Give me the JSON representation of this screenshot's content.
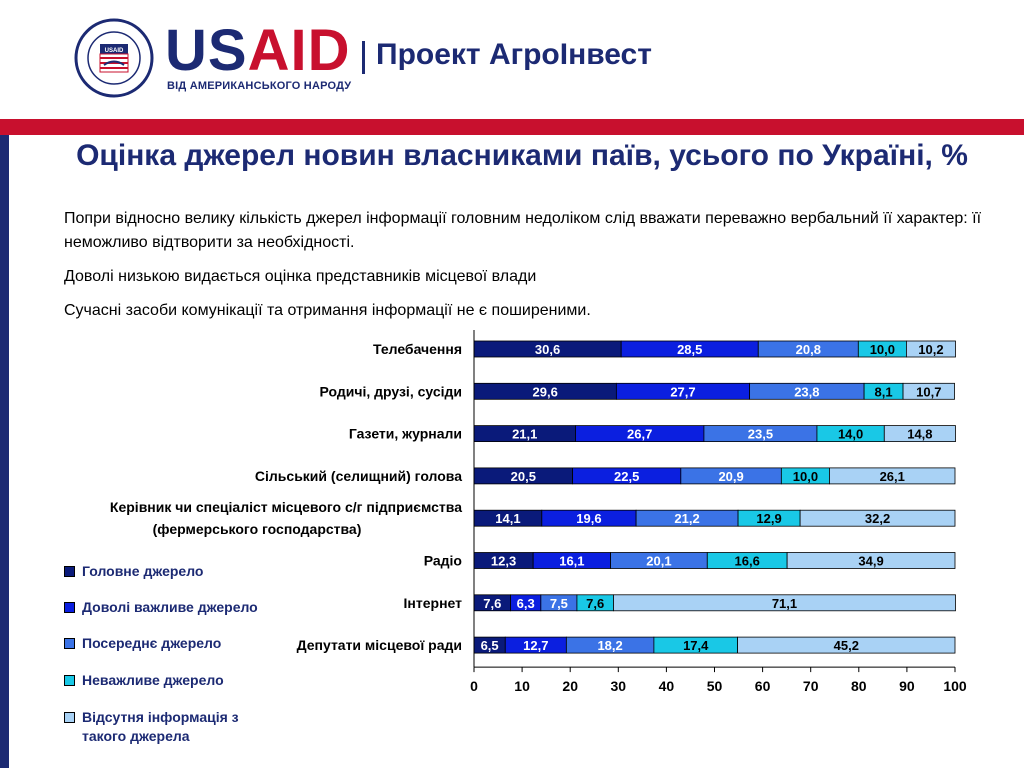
{
  "header": {
    "usaid_logo": "USAID",
    "usaid_tagline": "ВІД АМЕРИКАНСЬКОГО НАРОДУ",
    "project_name": "Проект АгроІнвест",
    "seal_text": "UNITED STATES AGENCY INTERNATIONAL DEVELOPMENT"
  },
  "title": "Оцінка джерел новин власниками паїв, усього по Україні, %",
  "paragraphs": [
    "Попри відносно велику кількість джерел інформації головним недоліком слід вважати переважно вербальний її характер: її неможливо відтворити за необхідності.",
    "Доволі низькою видається оцінка представників місцевої влади",
    "Сучасні засоби комунікації та отримання інформації не є поширеними."
  ],
  "colors": {
    "brand_blue": "#1c2a73",
    "brand_red": "#c8102e"
  },
  "chart_data": {
    "type": "bar",
    "orientation": "horizontal",
    "stacked": true,
    "categories": [
      [
        "Телебачення"
      ],
      [
        "Родичі, друзі, сусіди"
      ],
      [
        "Газети, журнали"
      ],
      [
        "Сільський (селищний) голова"
      ],
      [
        "Керівник чи спеціаліст місцевого с/г підприємства",
        "(фермерського господарства)"
      ],
      [
        "Радіо"
      ],
      [
        "Інтернет"
      ],
      [
        "Депутати місцевої ради"
      ]
    ],
    "series": [
      {
        "name": "Головне джерело",
        "color": "#0a1a7a",
        "label_color": "#ffffff",
        "values": [
          30.6,
          29.6,
          21.1,
          20.5,
          14.1,
          12.3,
          7.6,
          6.5
        ]
      },
      {
        "name": "Доволі важливе джерело",
        "color": "#0b1fe0",
        "label_color": "#ffffff",
        "values": [
          28.5,
          27.7,
          26.7,
          22.5,
          19.6,
          16.1,
          6.3,
          12.7
        ]
      },
      {
        "name": "Посереднє джерело",
        "color": "#3b73e6",
        "label_color": "#ffffff",
        "values": [
          20.8,
          23.8,
          23.5,
          20.9,
          21.2,
          20.1,
          7.5,
          18.2
        ]
      },
      {
        "name": "Неважливе джерело",
        "color": "#19c8e6",
        "label_color": "#000000",
        "values": [
          10.0,
          8.1,
          14.0,
          10.0,
          12.9,
          16.6,
          7.6,
          17.4
        ]
      },
      {
        "name": "Відсутня інформація з такого джерела",
        "color": "#a9d2f5",
        "label_color": "#000000",
        "values": [
          10.2,
          10.7,
          14.8,
          26.1,
          32.2,
          34.9,
          71.1,
          45.2
        ]
      }
    ],
    "xlim": [
      0,
      100
    ],
    "xticks": [
      0,
      10,
      20,
      30,
      40,
      50,
      60,
      70,
      80,
      90,
      100
    ],
    "legend_position": "bottom-left"
  },
  "legend": {
    "items": [
      {
        "label_lines": [
          "Головне джерело"
        ],
        "color": "#0a1a7a"
      },
      {
        "label_lines": [
          "Доволі важливе джерело"
        ],
        "color": "#0b1fe0"
      },
      {
        "label_lines": [
          "Посереднє джерело"
        ],
        "color": "#3b73e6"
      },
      {
        "label_lines": [
          "Неважливе джерело"
        ],
        "color": "#19c8e6"
      },
      {
        "label_lines": [
          "Відсутня інформація з",
          "такого джерела"
        ],
        "color": "#a9d2f5"
      }
    ]
  }
}
